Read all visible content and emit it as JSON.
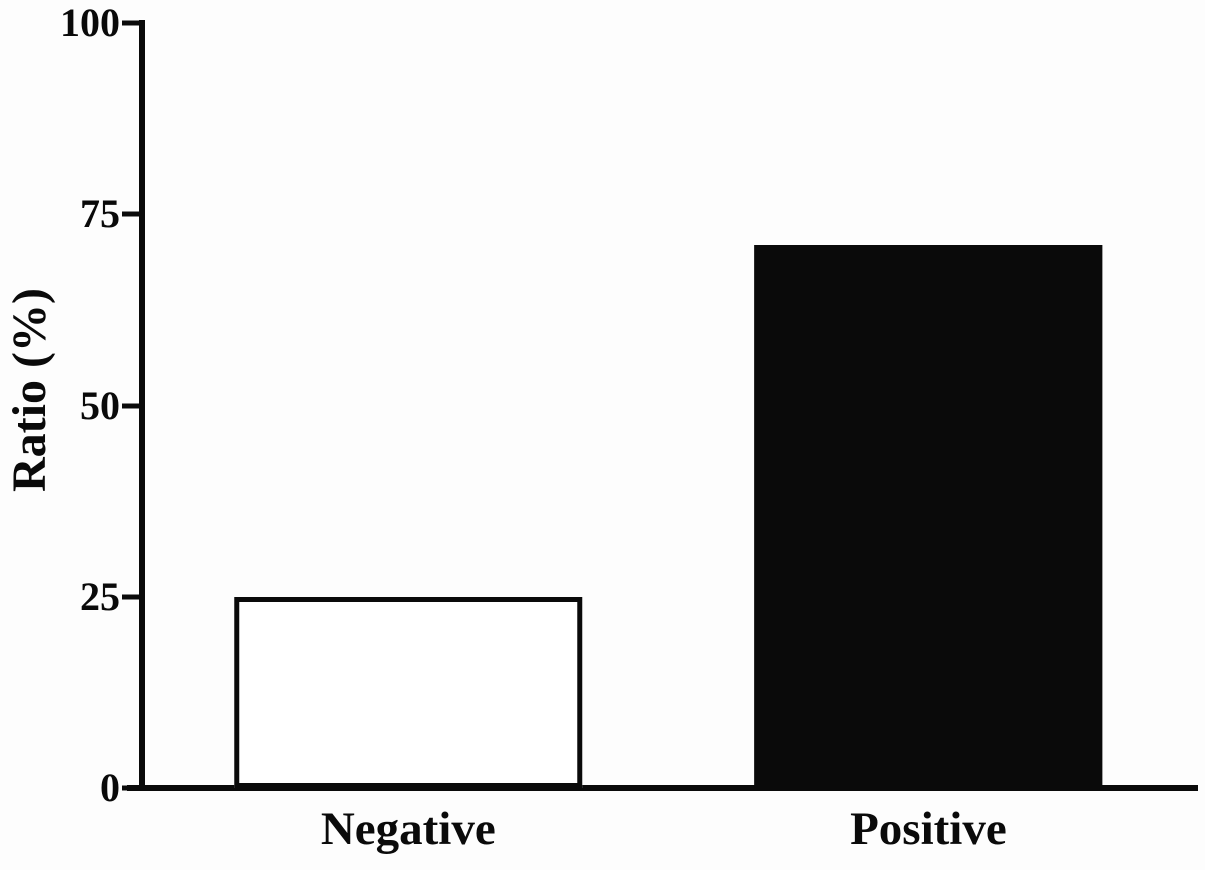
{
  "chart_data": {
    "type": "bar",
    "title": "",
    "categories": [
      "Negative",
      "Positive"
    ],
    "values": [
      25,
      71
    ],
    "xlabel": "",
    "ylabel": "Ratio (%)",
    "ylim": [
      0,
      100
    ],
    "yticks": [
      0,
      25,
      50,
      75,
      100
    ],
    "grid": "off",
    "legend": "none",
    "bar_styles": [
      {
        "fill": "#ffffff",
        "stroke": "#0a0a0a"
      },
      {
        "fill": "#0a0a0a",
        "stroke": "#0a0a0a"
      }
    ],
    "layout": {
      "bar_centers_pct": [
        25,
        74.4
      ],
      "bar_width_pct": 33,
      "axis_color": "#0a0a0a",
      "background": "#fdfdfd"
    }
  }
}
